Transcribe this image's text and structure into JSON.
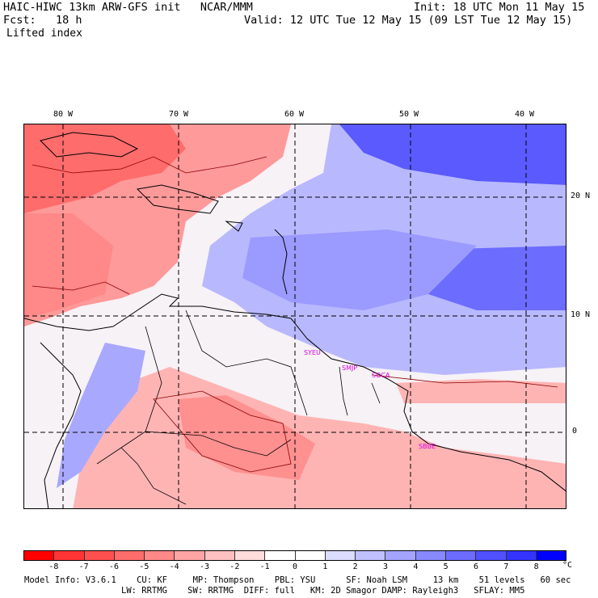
{
  "header": {
    "line1_left": "HAIC-HIWC 13km ARW-GFS init   NCAR/MMM",
    "line1_right": "Init: 18 UTC Mon 11 May 15",
    "line2_left": "Fcst:   18 h",
    "line2_right": "Valid: 12 UTC Tue 12 May 15 (09 LST Tue 12 May 15)",
    "field_name": "Lifted index"
  },
  "map": {
    "lon_labels": [
      "80 W",
      "70 W",
      "60 W",
      "50 W",
      "40 W"
    ],
    "lat_labels": [
      "20 N",
      "10 N",
      "0"
    ],
    "stations": [
      "SYEU",
      "SMJP",
      "SOCA",
      "SBBE"
    ]
  },
  "colorbar": {
    "colors": [
      "#ff0000",
      "#ff3434",
      "#ff5050",
      "#ff6c6c",
      "#ff8888",
      "#ffa4a4",
      "#ffc0c0",
      "#ffdcdc",
      "#ffffff",
      "#ffffff",
      "#dcdcff",
      "#c0c0ff",
      "#a4a4ff",
      "#8888ff",
      "#6c6cff",
      "#5050ff",
      "#3434ff",
      "#0000ff"
    ],
    "ticks": [
      "-8",
      "-7",
      "-6",
      "-5",
      "-4",
      "-3",
      "-2",
      "-1",
      "0",
      "1",
      "2",
      "3",
      "4",
      "5",
      "6",
      "7",
      "8"
    ],
    "unit": "°C"
  },
  "model_info": {
    "line1": "Model Info: V3.6.1    CU: KF     MP: Thompson    PBL: YSU      SF: Noah LSM     13 km    51 levels   60 sec",
    "line2": "LW: RRTMG    SW: RRTMG  DIFF: full   KM: 2D Smagor DAMP: Rayleigh3   SFLAY: MM5"
  }
}
